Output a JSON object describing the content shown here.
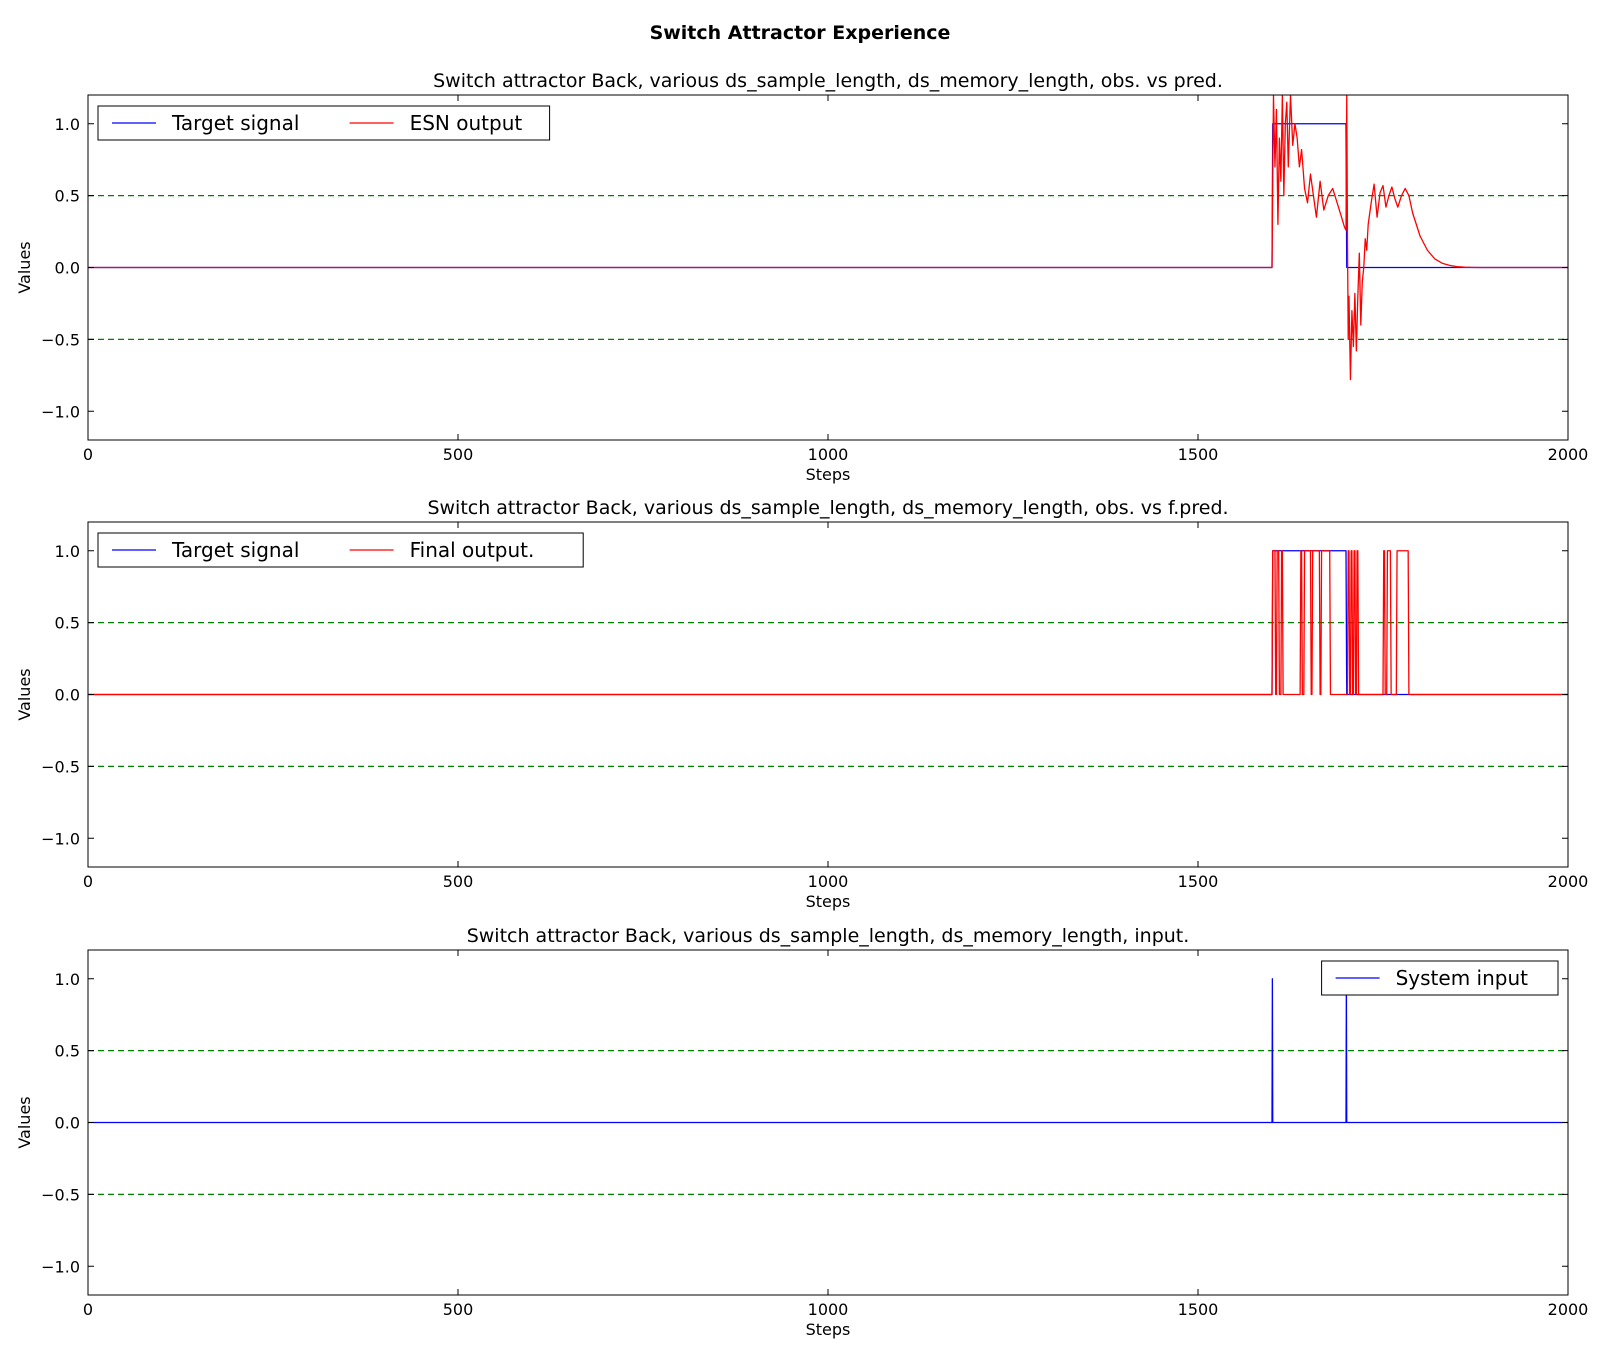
{
  "figure": {
    "title": "Switch Attractor Experience"
  },
  "colors": {
    "target": "#0000ff",
    "output": "#ff0000",
    "reference": "#008000",
    "axes": "#000000"
  },
  "chart_data": [
    {
      "type": "line",
      "title": "Switch attractor Back, various ds_sample_length, ds_memory_length, obs. vs pred.",
      "xlabel": "Steps",
      "ylabel": "Values",
      "xlim": [
        0,
        2000
      ],
      "ylim": [
        -1.2,
        1.2
      ],
      "xticks": [
        "0",
        "500",
        "1000",
        "1500",
        "2000"
      ],
      "yticks": [
        "1.0",
        "0.5",
        "0.0",
        "−0.5",
        "−1.0"
      ],
      "ytick_values": [
        1.0,
        0.5,
        0.0,
        -0.5,
        -1.0
      ],
      "reference_lines": [
        0.5,
        -0.5
      ],
      "legend": {
        "position": "top-left",
        "columns": 2
      },
      "series": [
        {
          "name": "Target signal",
          "color": "#0000ff",
          "x": [
            0,
            1600,
            1601,
            1700,
            1701,
            2000
          ],
          "y": [
            0,
            0,
            1,
            1,
            0,
            0
          ]
        },
        {
          "name": "ESN output",
          "color": "#ff0000",
          "x": [
            0,
            1600,
            1602,
            1604,
            1606,
            1608,
            1610,
            1612,
            1614,
            1616,
            1618,
            1620,
            1622,
            1625,
            1628,
            1631,
            1634,
            1637,
            1640,
            1644,
            1648,
            1652,
            1656,
            1660,
            1665,
            1670,
            1676,
            1682,
            1688,
            1694,
            1698,
            1700,
            1701,
            1702,
            1703,
            1704,
            1706,
            1708,
            1710,
            1712,
            1714,
            1716,
            1718,
            1720,
            1722,
            1724,
            1726,
            1728,
            1730,
            1734,
            1738,
            1742,
            1746,
            1750,
            1754,
            1758,
            1762,
            1766,
            1770,
            1775,
            1780,
            1785,
            1790,
            1800,
            1810,
            1820,
            1830,
            1840,
            1850,
            1860,
            1870,
            1880,
            1900,
            2000
          ],
          "y": [
            0,
            0,
            1.2,
            0.7,
            1.1,
            0.3,
            0.9,
            0.6,
            1.2,
            0.5,
            1.0,
            1.15,
            0.7,
            1.2,
            0.85,
            1.0,
            0.9,
            0.7,
            0.82,
            0.55,
            0.45,
            0.65,
            0.5,
            0.35,
            0.6,
            0.4,
            0.5,
            0.55,
            0.45,
            0.35,
            0.28,
            0.26,
            1.2,
            0.2,
            -0.5,
            -0.2,
            -0.78,
            -0.3,
            -0.55,
            -0.18,
            -0.58,
            -0.2,
            0.1,
            -0.4,
            -0.1,
            0.0,
            0.2,
            0.12,
            0.3,
            0.45,
            0.58,
            0.35,
            0.52,
            0.57,
            0.42,
            0.5,
            0.56,
            0.48,
            0.42,
            0.5,
            0.55,
            0.5,
            0.38,
            0.22,
            0.12,
            0.06,
            0.03,
            0.015,
            0.006,
            0.002,
            0.001,
            0.0,
            0.0,
            0.0
          ]
        }
      ]
    },
    {
      "type": "line",
      "title": "Switch attractor Back, various ds_sample_length, ds_memory_length, obs. vs f.pred.",
      "xlabel": "Steps",
      "ylabel": "Values",
      "xlim": [
        0,
        2000
      ],
      "ylim": [
        -1.2,
        1.2
      ],
      "xticks": [
        "0",
        "500",
        "1000",
        "1500",
        "2000"
      ],
      "yticks": [
        "1.0",
        "0.5",
        "0.0",
        "−0.5",
        "−1.0"
      ],
      "ytick_values": [
        1.0,
        0.5,
        0.0,
        -0.5,
        -1.0
      ],
      "reference_lines": [
        0.5,
        -0.5
      ],
      "legend": {
        "position": "top-left",
        "columns": 2
      },
      "series": [
        {
          "name": "Target signal",
          "color": "#0000ff",
          "x": [
            0,
            1600,
            1601,
            1700,
            1701,
            2000
          ],
          "y": [
            0,
            0,
            1,
            1,
            0,
            0
          ]
        },
        {
          "name": "Final output.",
          "color": "#ff0000",
          "x": [
            0,
            1600,
            1601,
            1604,
            1605,
            1606,
            1607,
            1609,
            1610,
            1612,
            1613,
            1614,
            1615,
            1638,
            1639,
            1640,
            1641,
            1643,
            1644,
            1652,
            1653,
            1654,
            1655,
            1664,
            1665,
            1666,
            1667,
            1678,
            1679,
            1702,
            1703,
            1704,
            1705,
            1706,
            1707,
            1708,
            1709,
            1710,
            1711,
            1712,
            1713,
            1714,
            1715,
            1716,
            1717,
            1718,
            1719,
            1750,
            1751,
            1752,
            1753,
            1755,
            1756,
            1760,
            1761,
            1768,
            1769,
            1774,
            1775,
            1784,
            1785,
            2000
          ],
          "y": [
            0,
            0,
            1,
            1,
            0,
            0,
            1,
            1,
            0,
            0,
            1,
            1,
            0,
            0,
            1,
            1,
            0,
            0,
            1,
            1,
            0,
            0,
            1,
            1,
            0,
            0,
            1,
            1,
            0,
            0,
            1,
            1,
            0,
            0,
            1,
            1,
            0,
            0,
            1,
            1,
            0,
            0,
            1,
            1,
            0,
            0,
            0,
            0,
            1,
            1,
            0,
            0,
            1,
            1,
            0,
            0,
            1,
            1,
            1,
            1,
            0,
            0
          ]
        }
      ]
    },
    {
      "type": "line",
      "title": "Switch attractor Back, various ds_sample_length, ds_memory_length, input.",
      "xlabel": "Steps",
      "ylabel": "Values",
      "xlim": [
        0,
        2000
      ],
      "ylim": [
        -1.2,
        1.2
      ],
      "xticks": [
        "0",
        "500",
        "1000",
        "1500",
        "2000"
      ],
      "yticks": [
        "1.0",
        "0.5",
        "0.0",
        "−0.5",
        "−1.0"
      ],
      "ytick_values": [
        1.0,
        0.5,
        0.0,
        -0.5,
        -1.0
      ],
      "reference_lines": [
        0.5,
        -0.5
      ],
      "legend": {
        "position": "top-right",
        "columns": 1
      },
      "series": [
        {
          "name": "System input",
          "color": "#0000ff",
          "x": [
            0,
            1600,
            1600.5,
            1601,
            2000
          ],
          "y": [
            0,
            0,
            1,
            0,
            0
          ]
        },
        {
          "name": "",
          "color": "#0000ff",
          "x": [
            1700,
            1700.5,
            1701
          ],
          "y": [
            0,
            1,
            0
          ]
        }
      ]
    }
  ]
}
